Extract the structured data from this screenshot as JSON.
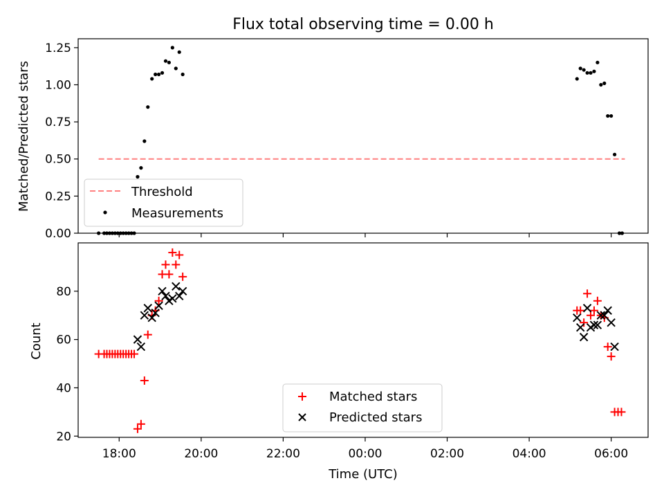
{
  "figure": {
    "title": "Flux total observing time = 0.00 h"
  },
  "chart_data": [
    {
      "type": "scatter",
      "title": "Flux total observing time = 0.00 h",
      "xlabel": "",
      "ylabel": "Matched/Predicted stars",
      "x_axis": "time",
      "xlim": [
        17.0,
        30.9
      ],
      "ylim": [
        0.0,
        1.31
      ],
      "yticks": [
        0.0,
        0.25,
        0.5,
        0.75,
        1.0,
        1.25
      ],
      "ytick_labels": [
        "0.00",
        "0.25",
        "0.50",
        "0.75",
        "1.00",
        "1.25"
      ],
      "legend_position": "lower-left",
      "legend": [
        "Threshold",
        "Measurements"
      ],
      "threshold": {
        "name": "Threshold",
        "y": 0.5,
        "x_start": "17:30",
        "x_end": "06:20",
        "color": "#ff7f7f",
        "style": "dashed"
      },
      "series": [
        {
          "name": "Measurements",
          "marker": "dot",
          "color": "#000000",
          "points": [
            [
              "17:30",
              0.0
            ],
            [
              "17:38",
              0.0
            ],
            [
              "17:42",
              0.0
            ],
            [
              "17:46",
              0.0
            ],
            [
              "17:50",
              0.0
            ],
            [
              "17:54",
              0.0
            ],
            [
              "17:58",
              0.0
            ],
            [
              "18:02",
              0.0
            ],
            [
              "18:06",
              0.0
            ],
            [
              "18:10",
              0.0
            ],
            [
              "18:14",
              0.0
            ],
            [
              "18:18",
              0.0
            ],
            [
              "18:22",
              0.0
            ],
            [
              "18:27",
              0.38
            ],
            [
              "18:32",
              0.44
            ],
            [
              "18:37",
              0.62
            ],
            [
              "18:42",
              0.85
            ],
            [
              "18:48",
              1.04
            ],
            [
              "18:53",
              1.07
            ],
            [
              "18:58",
              1.07
            ],
            [
              "19:03",
              1.08
            ],
            [
              "19:08",
              1.16
            ],
            [
              "19:13",
              1.15
            ],
            [
              "19:18",
              1.25
            ],
            [
              "19:23",
              1.11
            ],
            [
              "19:28",
              1.22
            ],
            [
              "19:33",
              1.07
            ],
            [
              "05:10",
              1.04
            ],
            [
              "05:15",
              1.11
            ],
            [
              "05:20",
              1.1
            ],
            [
              "05:25",
              1.08
            ],
            [
              "05:30",
              1.08
            ],
            [
              "05:35",
              1.09
            ],
            [
              "05:40",
              1.15
            ],
            [
              "05:45",
              1.0
            ],
            [
              "05:50",
              1.01
            ],
            [
              "05:55",
              0.79
            ],
            [
              "06:00",
              0.79
            ],
            [
              "06:05",
              0.53
            ],
            [
              "06:12",
              0.0
            ],
            [
              "06:16",
              0.0
            ]
          ]
        }
      ]
    },
    {
      "type": "scatter",
      "title": "",
      "xlabel": "Time (UTC)",
      "ylabel": "Count",
      "x_axis": "time",
      "xlim": [
        17.0,
        30.9
      ],
      "ylim": [
        19.5,
        100
      ],
      "yticks": [
        20,
        40,
        60,
        80
      ],
      "xticks": [
        "18:00",
        "20:00",
        "22:00",
        "00:00",
        "02:00",
        "04:00",
        "06:00"
      ],
      "legend_position": "lower-center",
      "legend": [
        "Matched stars",
        "Predicted stars"
      ],
      "series": [
        {
          "name": "Matched stars",
          "marker": "plus",
          "color": "#ff0000",
          "points": [
            [
              "17:30",
              54
            ],
            [
              "17:38",
              54
            ],
            [
              "17:42",
              54
            ],
            [
              "17:46",
              54
            ],
            [
              "17:50",
              54
            ],
            [
              "17:54",
              54
            ],
            [
              "17:58",
              54
            ],
            [
              "18:02",
              54
            ],
            [
              "18:06",
              54
            ],
            [
              "18:10",
              54
            ],
            [
              "18:14",
              54
            ],
            [
              "18:18",
              54
            ],
            [
              "18:22",
              54
            ],
            [
              "18:27",
              23
            ],
            [
              "18:32",
              25
            ],
            [
              "18:37",
              43
            ],
            [
              "18:42",
              62
            ],
            [
              "18:48",
              70
            ],
            [
              "18:53",
              72
            ],
            [
              "18:58",
              76
            ],
            [
              "19:03",
              87
            ],
            [
              "19:08",
              91
            ],
            [
              "19:13",
              87
            ],
            [
              "19:18",
              96
            ],
            [
              "19:23",
              91
            ],
            [
              "19:28",
              95
            ],
            [
              "19:33",
              86
            ],
            [
              "05:10",
              72
            ],
            [
              "05:15",
              72
            ],
            [
              "05:20",
              67
            ],
            [
              "05:25",
              79
            ],
            [
              "05:30",
              70
            ],
            [
              "05:35",
              72
            ],
            [
              "05:40",
              76
            ],
            [
              "05:45",
              70
            ],
            [
              "05:50",
              69
            ],
            [
              "05:55",
              57
            ],
            [
              "06:00",
              53
            ],
            [
              "06:05",
              30
            ],
            [
              "06:10",
              30
            ],
            [
              "06:15",
              30
            ]
          ]
        },
        {
          "name": "Predicted stars",
          "marker": "x",
          "color": "#000000",
          "points": [
            [
              "18:27",
              60
            ],
            [
              "18:32",
              57
            ],
            [
              "18:37",
              70
            ],
            [
              "18:42",
              73
            ],
            [
              "18:48",
              69
            ],
            [
              "18:53",
              71
            ],
            [
              "18:58",
              74
            ],
            [
              "19:03",
              80
            ],
            [
              "19:08",
              78
            ],
            [
              "19:13",
              76
            ],
            [
              "19:18",
              77
            ],
            [
              "19:23",
              82
            ],
            [
              "19:28",
              78
            ],
            [
              "19:33",
              80
            ],
            [
              "05:10",
              69
            ],
            [
              "05:15",
              65
            ],
            [
              "05:20",
              61
            ],
            [
              "05:25",
              73
            ],
            [
              "05:30",
              65
            ],
            [
              "05:35",
              66
            ],
            [
              "05:40",
              66
            ],
            [
              "05:45",
              70
            ],
            [
              "05:50",
              70
            ],
            [
              "05:55",
              72
            ],
            [
              "06:00",
              67
            ],
            [
              "06:05",
              57
            ]
          ]
        }
      ]
    }
  ]
}
